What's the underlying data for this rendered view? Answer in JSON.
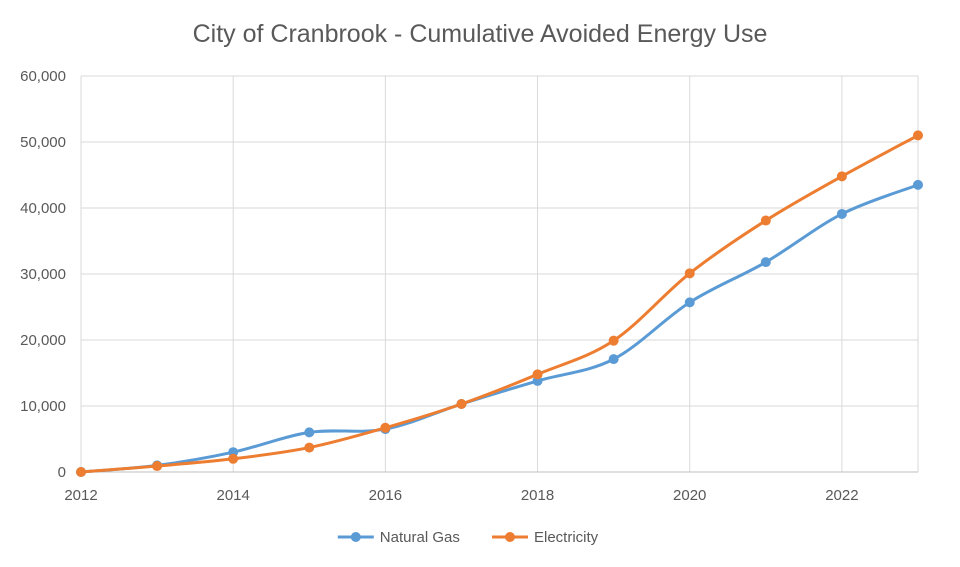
{
  "chart_data": {
    "type": "line",
    "title": "City of Cranbrook - Cumulative Avoided Energy Use",
    "xlabel": "",
    "ylabel": "",
    "x": [
      2012,
      2013,
      2014,
      2015,
      2016,
      2017,
      2018,
      2019,
      2020,
      2021,
      2022,
      2023
    ],
    "xlim": [
      2012,
      2023
    ],
    "ylim": [
      0,
      60000
    ],
    "x_ticks": [
      "2012",
      "2014",
      "2016",
      "2018",
      "2020",
      "2022"
    ],
    "y_ticks": [
      "0",
      "10,000",
      "20,000",
      "30,000",
      "40,000",
      "50,000",
      "60,000"
    ],
    "grid": true,
    "legend_position": "bottom",
    "smooth_lines": true,
    "series": [
      {
        "name": "Natural Gas",
        "color": "#5b9bd5",
        "values": [
          0,
          1000,
          3000,
          6000,
          6500,
          10300,
          13800,
          17100,
          25700,
          31800,
          39100,
          43500
        ]
      },
      {
        "name": "Electricity",
        "color": "#ed7d31",
        "values": [
          0,
          900,
          2000,
          3700,
          6700,
          10300,
          14800,
          19900,
          30100,
          38100,
          44800,
          51000
        ]
      }
    ]
  }
}
